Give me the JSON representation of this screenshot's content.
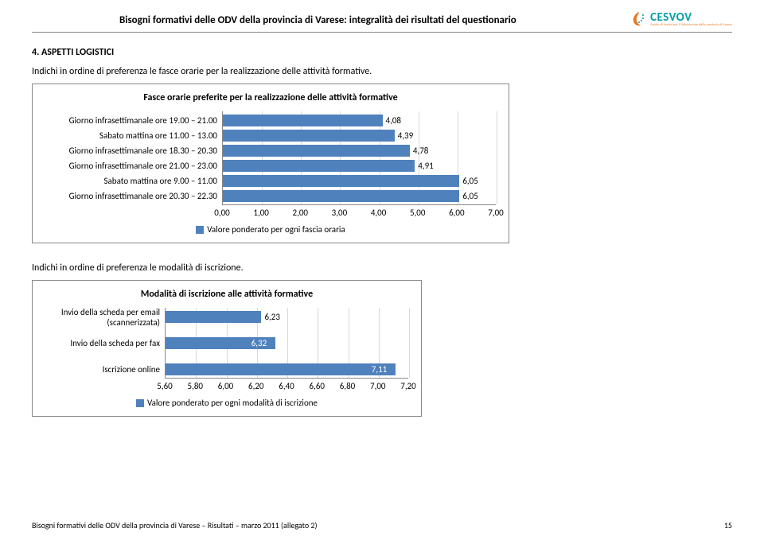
{
  "header": {
    "doc_title": "Bisogni formativi delle ODV della provincia di Varese: integralità dei risultati del questionario",
    "logo_name": "CESVOV",
    "logo_sub": "Centro di Servizi per il Volontariato della provincia di Varese"
  },
  "section4": {
    "title": "4. ASPETTI LOGISTICI",
    "intro": "Indichi in ordine di preferenza le fasce orarie per la realizzazione delle attività formative."
  },
  "chart1": {
    "type": "bar-horizontal",
    "title": "Fasce orarie preferite per la realizzazione delle attività formative",
    "xmin": 0.0,
    "xmax": 7.0,
    "xtick_step": 1.0,
    "ticks": [
      "0,00",
      "1,00",
      "2,00",
      "3,00",
      "4,00",
      "5,00",
      "6,00",
      "7,00"
    ],
    "bar_color": "#4f81bd",
    "grid_color": "#d9d9d9",
    "series": [
      {
        "label": "Giorno infrasettimanale ore 19.00 – 21.00",
        "value": 4.08,
        "value_label": "4,08"
      },
      {
        "label": "Sabato mattina ore 11.00 – 13.00",
        "value": 4.39,
        "value_label": "4,39"
      },
      {
        "label": "Giorno infrasettimanale ore 18.30 – 20.30",
        "value": 4.78,
        "value_label": "4,78"
      },
      {
        "label": "Giorno infrasettimanale ore 21.00 – 23.00",
        "value": 4.91,
        "value_label": "4,91"
      },
      {
        "label": "Sabato mattina ore 9.00 – 11.00",
        "value": 6.05,
        "value_label": "6,05"
      },
      {
        "label": "Giorno infrasettimanale ore 20.30 – 22.30",
        "value": 6.05,
        "value_label": "6,05"
      }
    ],
    "legend": "Valore ponderato per ogni fascia oraria"
  },
  "para2": "Indichi in ordine di preferenza le modalità di iscrizione.",
  "chart2": {
    "type": "bar-horizontal",
    "title": "Modalità di iscrizione alle attività formative",
    "xmin": 5.6,
    "xmax": 7.2,
    "xtick_step": 0.2,
    "ticks": [
      "5,60",
      "5,80",
      "6,00",
      "6,20",
      "6,40",
      "6,60",
      "6,80",
      "7,00",
      "7,20"
    ],
    "bar_color": "#4f81bd",
    "grid_color": "#d9d9d9",
    "series": [
      {
        "label": "Invio della scheda per email\n(scannerizzata)",
        "value": 6.23,
        "value_label": "6,23"
      },
      {
        "label": "Invio della scheda per fax",
        "value": 6.32,
        "value_label": "6,32"
      },
      {
        "label": "Iscrizione online",
        "value": 7.11,
        "value_label": "7,11"
      }
    ],
    "legend": "Valore ponderato per ogni modalità di iscrizione"
  },
  "footer": {
    "text": "Bisogni formativi delle ODV della provincia di Varese – Risultati – marzo 2011 (allegato 2)",
    "page": "15"
  }
}
